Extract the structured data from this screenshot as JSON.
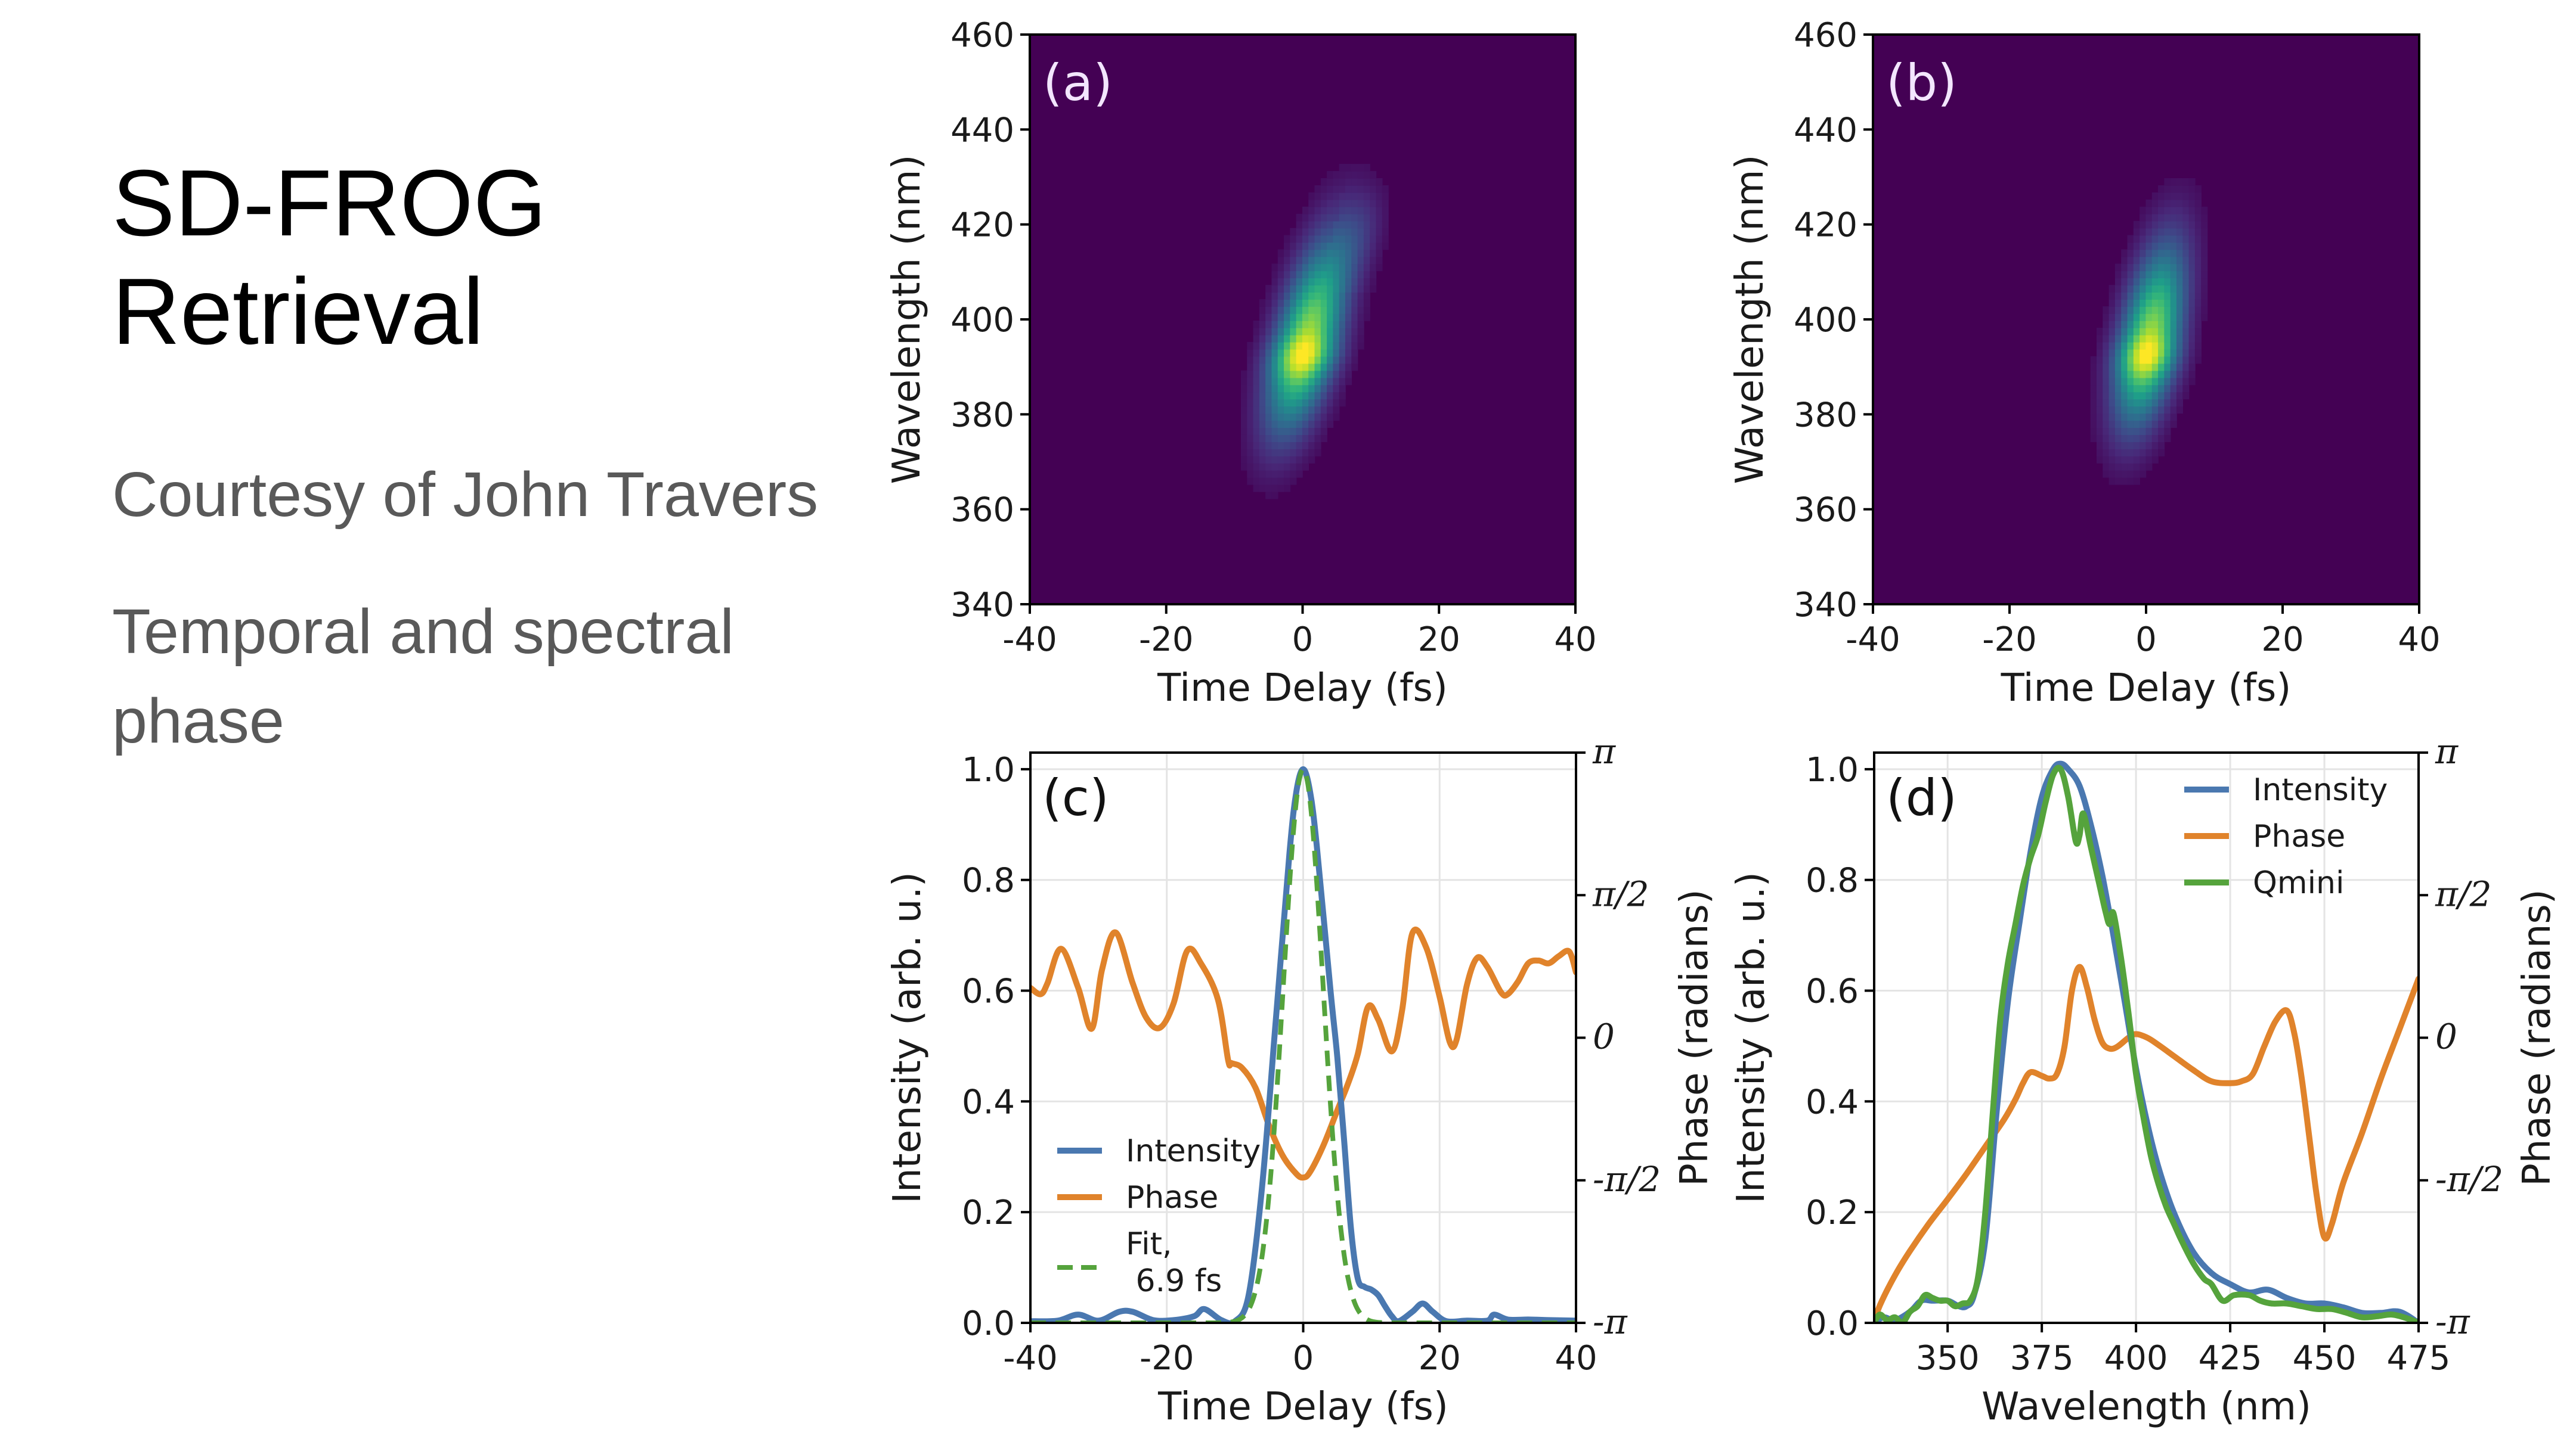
{
  "slide": {
    "title": "SD-FROG\nRetrieval",
    "subtitle_1": "Courtesy of John Travers",
    "subtitle_2": "Temporal and spectral phase"
  },
  "colors": {
    "intensity": "#4a78b0",
    "phase": "#e0832b",
    "fit": "#55a33c",
    "qmini": "#55a33c",
    "heatmap_bg": "#440154"
  },
  "chart_data": [
    {
      "id": "a",
      "panel_label": "(a)",
      "type": "heatmap",
      "xlabel": "Time Delay (fs)",
      "ylabel": "Wavelength (nm)",
      "xlim": [
        -40,
        40
      ],
      "ylim": [
        340,
        460
      ],
      "xticks": [
        -40,
        -20,
        0,
        20,
        40
      ],
      "yticks": [
        340,
        360,
        380,
        400,
        420,
        440,
        460
      ],
      "colormap": "viridis",
      "peak": {
        "t": 1,
        "wl": 392
      },
      "blob": {
        "t_center": 1.0,
        "wl_center": 398,
        "t_sigma": 3.2,
        "wl_sigma": 15,
        "tilt_fs_per_nm": 0.17,
        "asymmetric_tail": true
      }
    },
    {
      "id": "b",
      "panel_label": "(b)",
      "type": "heatmap",
      "xlabel": "Time Delay (fs)",
      "ylabel": "Wavelength (nm)",
      "xlim": [
        -40,
        40
      ],
      "ylim": [
        340,
        460
      ],
      "xticks": [
        -40,
        -20,
        0,
        20,
        40
      ],
      "yticks": [
        340,
        360,
        380,
        400,
        420,
        440,
        460
      ],
      "colormap": "viridis",
      "peak": {
        "t": 0.5,
        "wl": 392
      },
      "blob": {
        "t_center": 0.8,
        "wl_center": 398,
        "t_sigma": 3.0,
        "wl_sigma": 14,
        "tilt_fs_per_nm": 0.13,
        "asymmetric_tail": false
      }
    },
    {
      "id": "c",
      "panel_label": "(c)",
      "type": "line",
      "xlabel": "Time Delay (fs)",
      "ylabel": "Intensity (arb. u.)",
      "ylabel_right": "Phase (radians)",
      "xlim": [
        -40,
        40
      ],
      "ylim": [
        0,
        1.03
      ],
      "ylim_right": [
        "-π",
        "π"
      ],
      "xticks": [
        -40,
        -20,
        0,
        20,
        40
      ],
      "yticks": [
        0.0,
        0.2,
        0.4,
        0.6,
        0.8,
        1.0
      ],
      "yticks_right": [
        "-π",
        "-π/2",
        "0",
        "π/2",
        "π"
      ],
      "grid": true,
      "legend": {
        "position": "lower-left",
        "entries": [
          "Intensity",
          "Phase",
          "Fit,\n 6.9 fs"
        ]
      },
      "series": [
        {
          "name": "Intensity",
          "axis": "left",
          "style": "solid",
          "x": [
            -40,
            -36,
            -33,
            -30,
            -27,
            -25,
            -22,
            -19,
            -16,
            -14.5,
            -12,
            -10,
            -8,
            -6,
            -4,
            -2,
            -1,
            0,
            1,
            2,
            4,
            5,
            6,
            7,
            8,
            9,
            10,
            11,
            12,
            13,
            14,
            16,
            17.5,
            19,
            21,
            24,
            27,
            28,
            30,
            33,
            36,
            40
          ],
          "y": [
            0.003,
            0.004,
            0.015,
            0.004,
            0.02,
            0.02,
            0.005,
            0.005,
            0.012,
            0.025,
            0.005,
            0.003,
            0.05,
            0.25,
            0.55,
            0.85,
            0.96,
            1.0,
            0.96,
            0.86,
            0.6,
            0.48,
            0.33,
            0.17,
            0.08,
            0.065,
            0.06,
            0.05,
            0.03,
            0.012,
            0.003,
            0.02,
            0.035,
            0.02,
            0.003,
            0.004,
            0.004,
            0.015,
            0.006,
            0.006,
            0.005,
            0.004
          ]
        },
        {
          "name": "Phase",
          "axis": "right",
          "style": "solid",
          "x": [
            -40,
            -38.5,
            -37.5,
            -35.5,
            -33,
            -31,
            -29.5,
            -27.5,
            -25,
            -23,
            -21,
            -19,
            -17,
            -15,
            -12.5,
            -11,
            -10.5,
            -9,
            -7,
            -5,
            -3,
            -1,
            0,
            1,
            3,
            5,
            6.5,
            8,
            9.5,
            11,
            13,
            14.5,
            16,
            18,
            20,
            21.5,
            22.5,
            24,
            25.5,
            27,
            29,
            30,
            31.5,
            33,
            34.5,
            36,
            37.5,
            39,
            40
          ],
          "y": [
            0.55,
            0.48,
            0.6,
            0.98,
            0.55,
            0.1,
            0.75,
            1.16,
            0.6,
            0.22,
            0.11,
            0.38,
            0.96,
            0.82,
            0.42,
            -0.25,
            -0.28,
            -0.33,
            -0.55,
            -0.97,
            -1.3,
            -1.5,
            -1.54,
            -1.48,
            -1.18,
            -0.8,
            -0.52,
            -0.18,
            0.34,
            0.2,
            -0.15,
            0.3,
            1.15,
            1.0,
            0.45,
            -0.05,
            -0.02,
            0.58,
            0.88,
            0.78,
            0.5,
            0.48,
            0.62,
            0.82,
            0.85,
            0.82,
            0.9,
            0.95,
            0.72
          ]
        },
        {
          "name": "Fit, 6.9 fs",
          "axis": "left",
          "style": "dashed",
          "model": "gaussian",
          "fwhm_fs": 6.9,
          "center_fs": 0,
          "amplitude": 1.0
        }
      ]
    },
    {
      "id": "d",
      "panel_label": "(d)",
      "type": "line",
      "xlabel": "Wavelength (nm)",
      "ylabel": "Intensity (arb. u.)",
      "ylabel_right": "Phase (radians)",
      "xlim": [
        330.5,
        475
      ],
      "ylim": [
        0,
        1.03
      ],
      "ylim_right": [
        "-π",
        "π"
      ],
      "xticks": [
        350,
        375,
        400,
        425,
        450,
        475
      ],
      "yticks": [
        0.0,
        0.2,
        0.4,
        0.6,
        0.8,
        1.0
      ],
      "yticks_right": [
        "-π",
        "-π/2",
        "0",
        "π/2",
        "π"
      ],
      "grid": true,
      "legend": {
        "position": "upper-right",
        "entries": [
          "Intensity",
          "Phase",
          "Qmini"
        ]
      },
      "series": [
        {
          "name": "Intensity",
          "axis": "left",
          "style": "solid",
          "x": [
            330.5,
            333,
            336,
            340,
            343,
            346,
            350,
            353,
            355,
            357,
            360,
            363,
            366,
            369,
            372,
            375,
            378,
            380,
            382,
            385,
            388,
            391,
            394,
            397,
            400,
            403,
            406,
            410,
            415,
            420,
            425,
            430,
            435,
            440,
            445,
            450,
            455,
            460,
            465,
            470,
            475
          ],
          "y": [
            0.0,
            0.01,
            0.005,
            0.02,
            0.04,
            0.04,
            0.04,
            0.03,
            0.03,
            0.05,
            0.15,
            0.38,
            0.58,
            0.72,
            0.85,
            0.95,
            1.0,
            1.01,
            1.0,
            0.97,
            0.9,
            0.81,
            0.7,
            0.58,
            0.46,
            0.36,
            0.28,
            0.2,
            0.13,
            0.09,
            0.07,
            0.055,
            0.06,
            0.045,
            0.035,
            0.035,
            0.028,
            0.018,
            0.018,
            0.02,
            0.0
          ]
        },
        {
          "name": "Phase",
          "axis": "right",
          "style": "solid",
          "x": [
            330.5,
            332,
            336,
            340,
            345,
            350,
            355,
            360,
            365,
            368,
            370,
            372,
            375,
            377,
            379,
            381,
            383,
            385,
            387,
            389,
            391,
            393,
            395,
            398,
            400,
            403,
            406,
            410,
            415,
            420,
            425,
            428,
            431,
            434,
            437,
            440,
            442,
            444,
            446,
            448,
            450,
            452,
            455,
            460,
            465,
            470,
            475
          ],
          "y": [
            -3.14,
            -2.95,
            -2.62,
            -2.35,
            -2.05,
            -1.78,
            -1.5,
            -1.2,
            -0.9,
            -0.68,
            -0.5,
            -0.38,
            -0.42,
            -0.45,
            -0.4,
            -0.1,
            0.52,
            0.78,
            0.55,
            0.2,
            -0.05,
            -0.12,
            -0.1,
            0.0,
            0.04,
            0.0,
            -0.08,
            -0.2,
            -0.35,
            -0.48,
            -0.5,
            -0.48,
            -0.4,
            -0.1,
            0.18,
            0.3,
            0.05,
            -0.45,
            -1.1,
            -1.75,
            -2.2,
            -2.05,
            -1.6,
            -1.05,
            -0.45,
            0.1,
            0.65
          ]
        },
        {
          "name": "Qmini",
          "axis": "left",
          "style": "solid",
          "x": [
            330.5,
            332,
            334,
            336,
            338,
            340,
            342,
            344,
            346,
            348,
            350,
            352,
            354,
            356,
            358,
            360,
            362,
            364,
            366,
            368,
            370,
            372,
            374,
            376,
            378,
            380,
            382,
            384,
            385,
            386,
            388,
            390,
            392,
            393,
            394,
            396,
            398,
            400,
            402,
            404,
            406,
            408,
            410,
            412,
            415,
            418,
            420,
            423,
            426,
            430,
            433,
            436,
            440,
            444,
            448,
            452,
            456,
            460,
            464,
            468,
            472,
            475
          ],
          "y": [
            0.0,
            0.015,
            0.005,
            0.01,
            0.0,
            0.02,
            0.03,
            0.05,
            0.045,
            0.04,
            0.04,
            0.03,
            0.035,
            0.04,
            0.08,
            0.2,
            0.38,
            0.55,
            0.65,
            0.72,
            0.79,
            0.84,
            0.88,
            0.94,
            0.99,
            1.0,
            0.95,
            0.87,
            0.88,
            0.92,
            0.86,
            0.8,
            0.74,
            0.72,
            0.74,
            0.66,
            0.56,
            0.45,
            0.37,
            0.3,
            0.25,
            0.21,
            0.18,
            0.15,
            0.11,
            0.08,
            0.07,
            0.04,
            0.05,
            0.05,
            0.04,
            0.035,
            0.035,
            0.03,
            0.025,
            0.025,
            0.018,
            0.01,
            0.012,
            0.015,
            0.008,
            0.0
          ]
        }
      ]
    }
  ]
}
